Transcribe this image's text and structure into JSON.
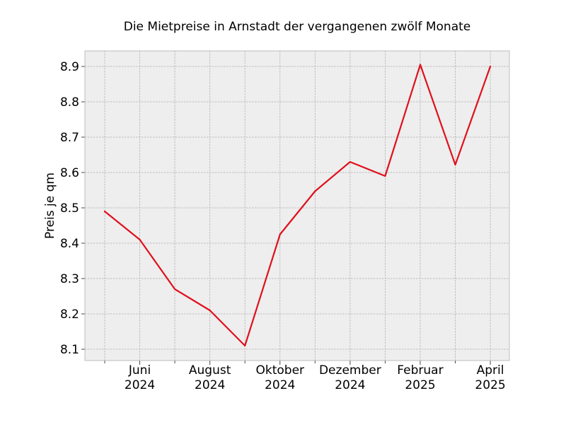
{
  "chart_data": {
    "type": "line",
    "title": "Die Mietpreise in Arnstadt der vergangenen zwölf Monate",
    "xlabel": "",
    "ylabel": "Preis je qm",
    "x": [
      "2024-05",
      "2024-06",
      "2024-07",
      "2024-08",
      "2024-09",
      "2024-10",
      "2024-11",
      "2024-12",
      "2025-01",
      "2025-02",
      "2025-03",
      "2025-04"
    ],
    "series": [
      {
        "values": [
          8.49,
          8.41,
          8.27,
          8.21,
          8.11,
          8.425,
          8.547,
          8.63,
          8.59,
          8.905,
          8.622,
          8.9
        ],
        "color": "#e0101c"
      }
    ],
    "ylim": [
      8.068,
      8.944
    ],
    "yticks": [
      "8.1",
      "8.2",
      "8.3",
      "8.4",
      "8.5",
      "8.6",
      "8.7",
      "8.8",
      "8.9"
    ],
    "yticks_values": [
      8.1,
      8.2,
      8.3,
      8.4,
      8.5,
      8.6,
      8.7,
      8.8,
      8.9
    ],
    "xticks_minor": [
      "2024-05",
      "2024-07",
      "2024-09",
      "2024-11",
      "2025-01",
      "2025-03"
    ],
    "xticks_major": [
      {
        "x": "2024-06",
        "line1": "Juni",
        "line2": "2024"
      },
      {
        "x": "2024-08",
        "line1": "August",
        "line2": "2024"
      },
      {
        "x": "2024-10",
        "line1": "Oktober",
        "line2": "2024"
      },
      {
        "x": "2024-12",
        "line1": "Dezember",
        "line2": "2024"
      },
      {
        "x": "2025-02",
        "line1": "Februar",
        "line2": "2025"
      },
      {
        "x": "2025-04",
        "line1": "April",
        "line2": "2025"
      }
    ],
    "grid": true,
    "legend": "none",
    "background_color": "#eeeeee",
    "grid_color": "#b0b0b0"
  }
}
